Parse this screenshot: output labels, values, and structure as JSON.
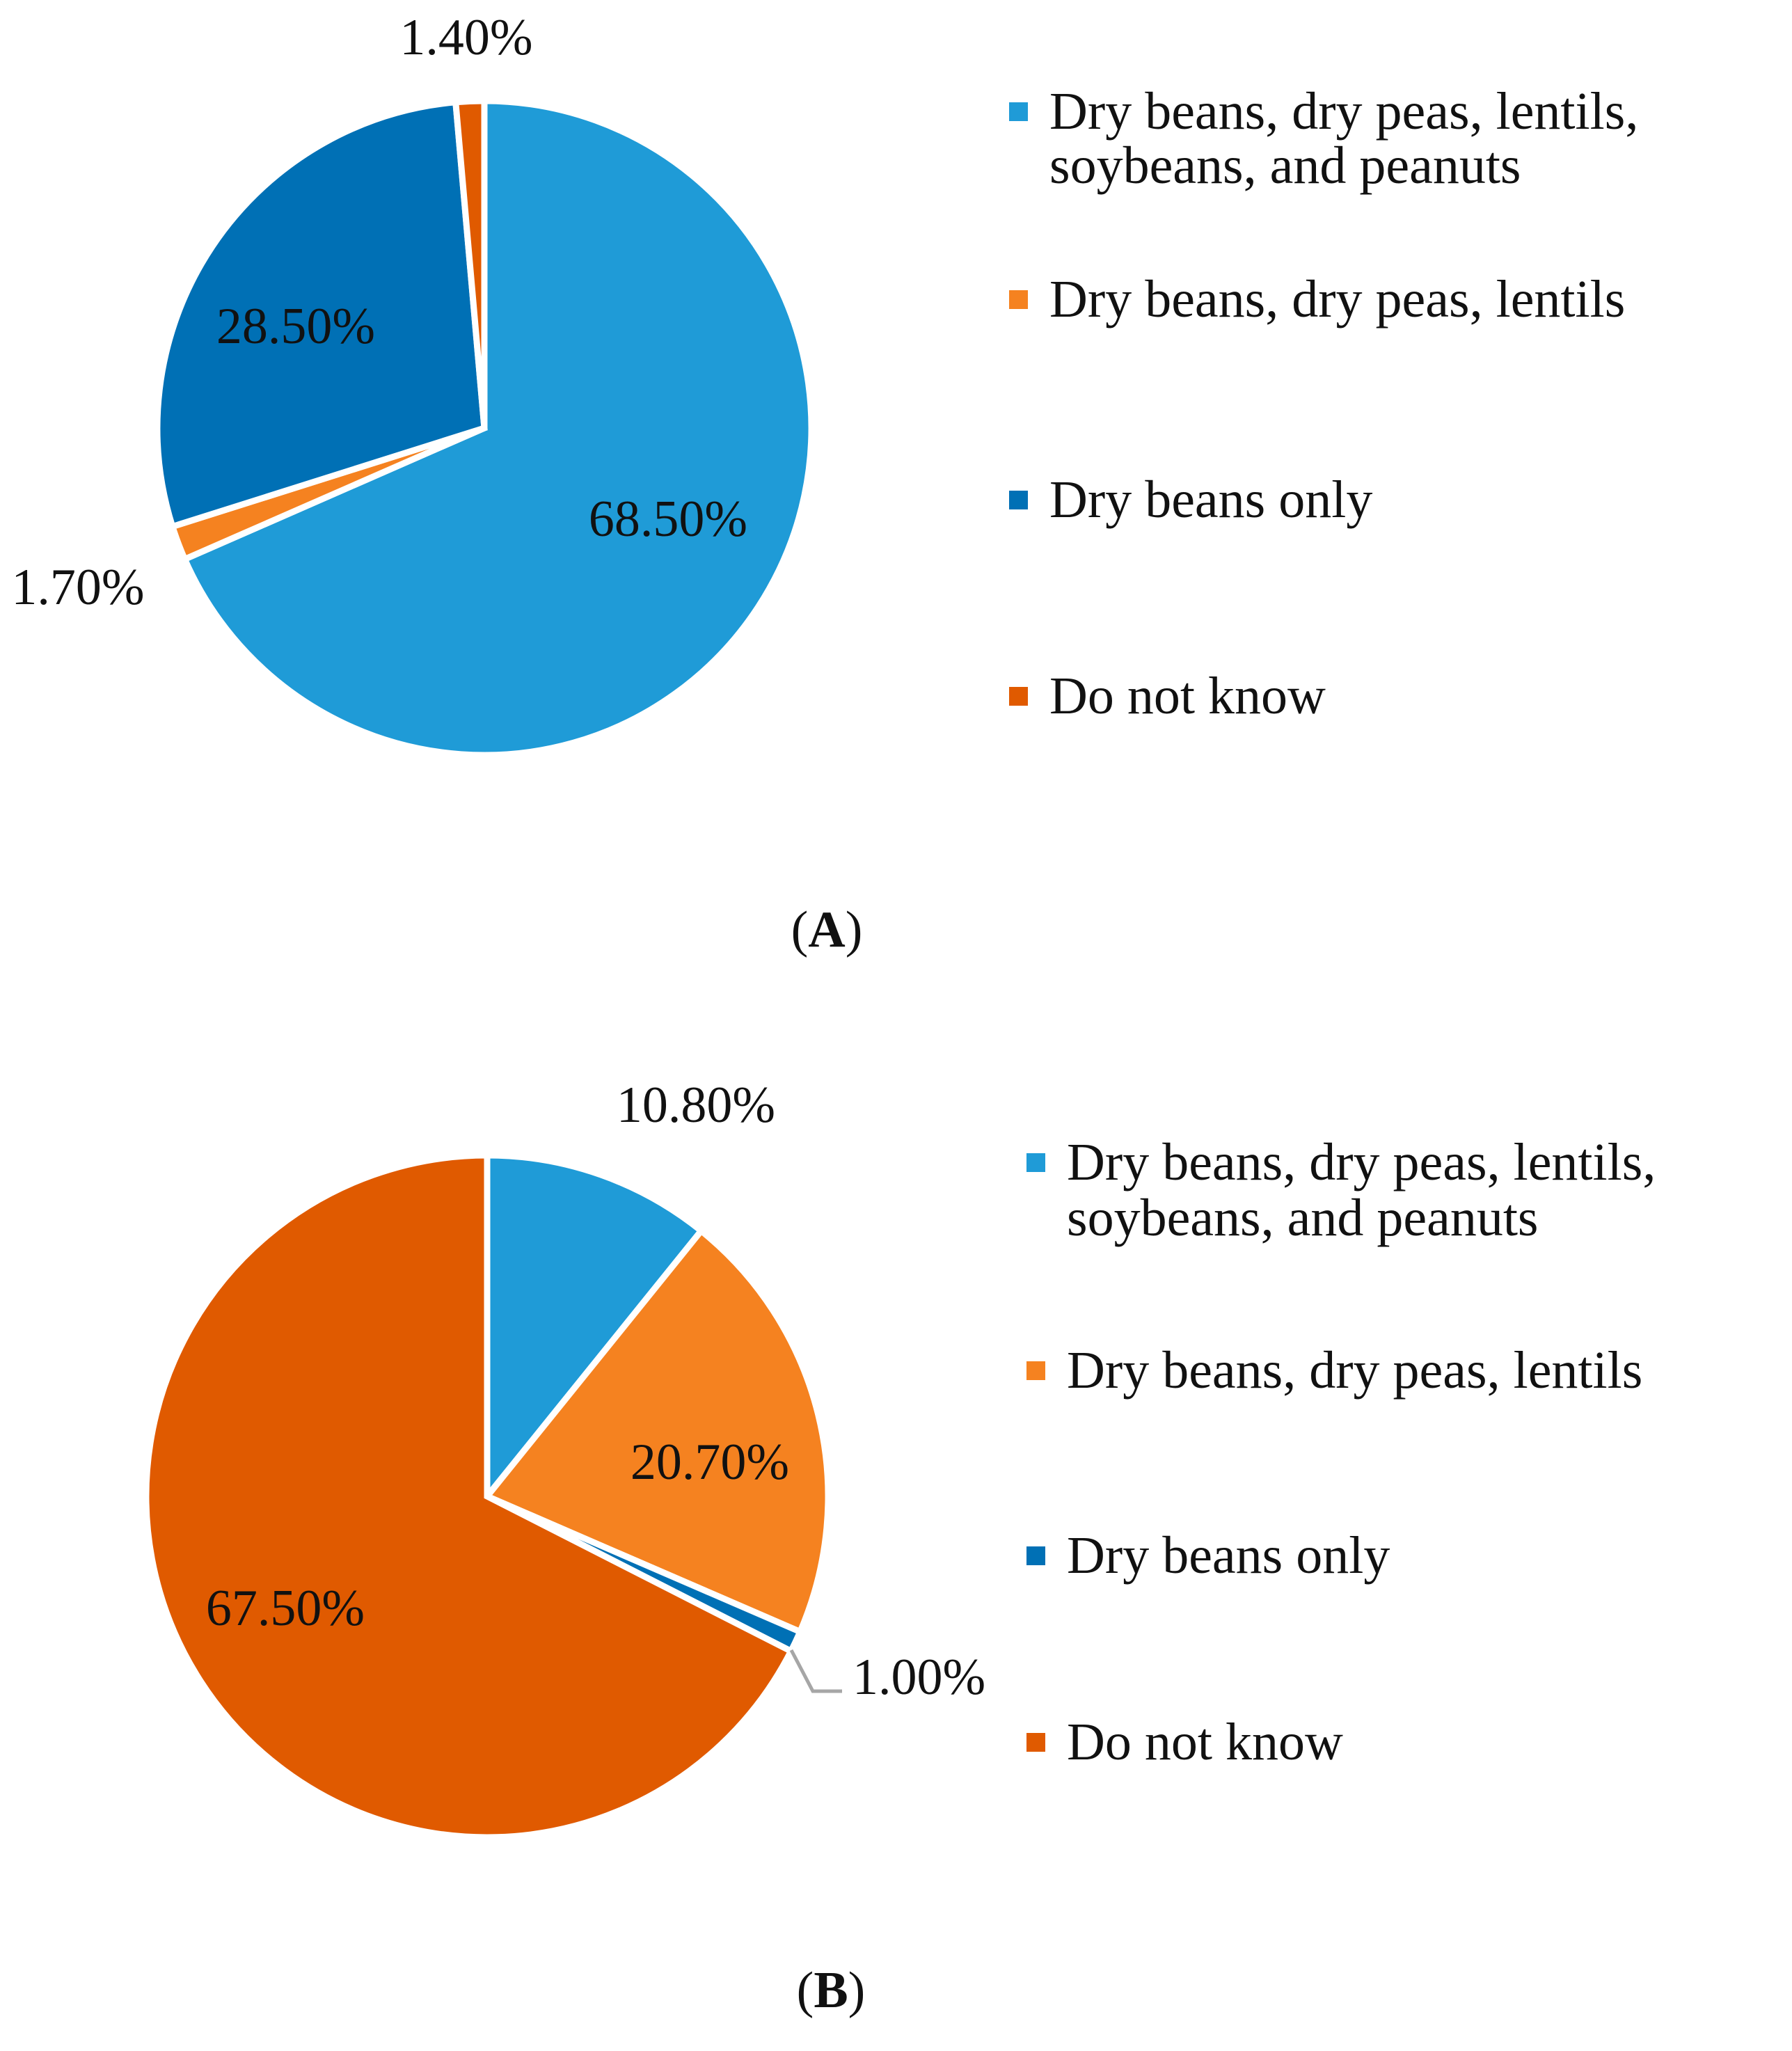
{
  "chart_data": [
    {
      "type": "pie",
      "panel": "A",
      "title": "",
      "categories": [
        "Dry beans, dry peas, lentils, soybeans, and peanuts",
        "Dry beans, dry peas, lentils",
        "Dry beans only",
        "Do not know"
      ],
      "values": [
        68.5,
        1.7,
        28.5,
        1.4
      ],
      "data_labels": [
        "68.50%",
        "1.70%",
        "28.50%",
        "1.40%"
      ],
      "colors": [
        "#1f9bd7",
        "#f58220",
        "#0070b5",
        "#e05a00"
      ],
      "legend_placement": "right",
      "legend": [
        [
          "Dry beans, dry peas, lentils,",
          "soybeans, and peanuts"
        ],
        [
          "Dry beans, dry peas, lentils"
        ],
        [
          "Dry beans only"
        ],
        [
          "Do not know"
        ]
      ],
      "panel_label": {
        "open": "(",
        "letter": "A",
        "close": ")"
      }
    },
    {
      "type": "pie",
      "panel": "B",
      "title": "",
      "categories": [
        "Dry beans, dry peas, lentils, soybeans, and peanuts",
        "Dry beans, dry peas, lentils",
        "Dry beans only",
        "Do not know"
      ],
      "values": [
        10.8,
        20.7,
        1.0,
        67.5
      ],
      "data_labels": [
        "10.80%",
        "20.70%",
        "1.00%",
        "67.50%"
      ],
      "colors": [
        "#1f9bd7",
        "#f58220",
        "#0070b5",
        "#e05a00"
      ],
      "legend_placement": "right",
      "legend": [
        [
          "Dry beans, dry peas, lentils,",
          "soybeans, and peanuts"
        ],
        [
          "Dry beans, dry peas, lentils"
        ],
        [
          "Dry beans only"
        ],
        [
          "Do not know"
        ]
      ],
      "panel_label": {
        "open": "(",
        "letter": "B",
        "close": ")"
      }
    }
  ]
}
